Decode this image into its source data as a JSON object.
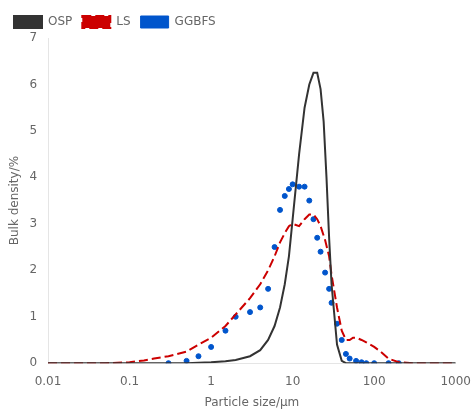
{
  "chart_data": {
    "type": "line",
    "xlabel": "Particle size/μm",
    "ylabel": "Bulk density/%",
    "log": "x",
    "xlim": [
      0.01,
      1000
    ],
    "xticks": [
      0.01,
      0.1,
      1,
      10,
      100,
      1000
    ],
    "ylim": [
      0,
      7
    ],
    "yticks": [
      0,
      1,
      2,
      3,
      4,
      5,
      6,
      7
    ],
    "grid": false,
    "legend": "upper left",
    "series": [
      {
        "name": "OSP",
        "color": "#333333",
        "line_style": "solid",
        "x": [
          0.01,
          0.05,
          0.08,
          0.1,
          0.15,
          0.2,
          0.3,
          0.5,
          0.7,
          1.0,
          1.5,
          2.0,
          3.0,
          4.0,
          5.0,
          6.0,
          7.0,
          8.0,
          9.0,
          10.0,
          12.0,
          14.0,
          16.0,
          18.0,
          20.0,
          22.0,
          24.0,
          26.0,
          28.0,
          30.0,
          35.0,
          40.0,
          45.0,
          50.0,
          60.0,
          70.0,
          80.0,
          100.0,
          200.0,
          500.0,
          1000.0
        ],
        "values": [
          0.0,
          0.0,
          0.0,
          0.0,
          0.0,
          0.0,
          0.0,
          0.0,
          0.01,
          0.02,
          0.04,
          0.07,
          0.15,
          0.28,
          0.5,
          0.8,
          1.2,
          1.7,
          2.3,
          3.1,
          4.5,
          5.5,
          6.0,
          6.25,
          6.25,
          5.9,
          5.2,
          4.0,
          2.7,
          1.7,
          0.4,
          0.05,
          0.0,
          0.0,
          0.0,
          0.0,
          0.0,
          0.0,
          0.0,
          0.0,
          0.0
        ]
      },
      {
        "name": "LS",
        "color": "#cc0000",
        "line_style": "dashed",
        "x": [
          0.01,
          0.05,
          0.1,
          0.12,
          0.15,
          0.2,
          0.3,
          0.5,
          0.7,
          1.0,
          1.5,
          2.0,
          3.0,
          4.0,
          5.0,
          6.0,
          7.0,
          8.0,
          9.0,
          10.0,
          12.0,
          14.0,
          16.0,
          18.0,
          20.0,
          22.0,
          25.0,
          28.0,
          30.0,
          35.0,
          40.0,
          45.0,
          50.0,
          55.0,
          60.0,
          70.0,
          80.0,
          100.0,
          120.0,
          150.0,
          200.0,
          300.0,
          500.0,
          1000.0
        ],
        "values": [
          0.0,
          0.0,
          0.02,
          0.04,
          0.06,
          0.1,
          0.15,
          0.25,
          0.4,
          0.55,
          0.8,
          1.05,
          1.4,
          1.7,
          2.0,
          2.3,
          2.6,
          2.8,
          2.95,
          3.0,
          2.95,
          3.1,
          3.2,
          3.2,
          3.1,
          2.95,
          2.65,
          2.3,
          1.9,
          1.2,
          0.7,
          0.5,
          0.5,
          0.55,
          0.55,
          0.5,
          0.45,
          0.35,
          0.25,
          0.1,
          0.02,
          0.0,
          0.0,
          0.0
        ]
      },
      {
        "name": "GGBFS",
        "color": "#0055cc",
        "line_style": "none",
        "marker": "dot",
        "x": [
          0.3,
          0.5,
          0.7,
          1.0,
          1.5,
          2.0,
          3.0,
          4.0,
          5.0,
          6.0,
          7.0,
          8.0,
          9.0,
          10.0,
          12.0,
          14.0,
          16.0,
          18.0,
          20.0,
          22.0,
          25.0,
          28.0,
          30.0,
          35.0,
          40.0,
          45.0,
          50.0,
          60.0,
          70.0,
          80.0,
          100.0,
          150.0,
          200.0
        ],
        "values": [
          0.0,
          0.05,
          0.15,
          0.35,
          0.7,
          1.0,
          1.1,
          1.2,
          1.6,
          2.5,
          3.3,
          3.6,
          3.75,
          3.85,
          3.8,
          3.8,
          3.5,
          3.1,
          2.7,
          2.4,
          1.95,
          1.6,
          1.3,
          0.85,
          0.5,
          0.2,
          0.1,
          0.05,
          0.02,
          0.0,
          0.0,
          0.0,
          0.0
        ]
      }
    ]
  }
}
